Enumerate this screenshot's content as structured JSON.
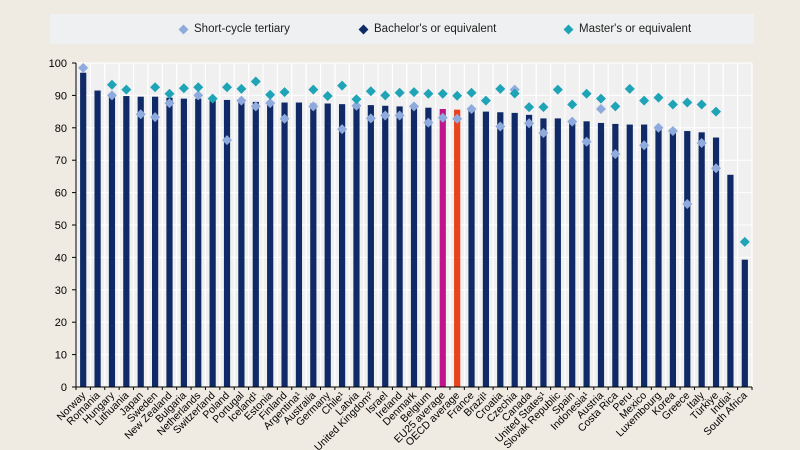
{
  "chart_data": {
    "type": "bar",
    "title": "",
    "xlabel": "",
    "ylabel": "",
    "ylim": [
      0,
      100
    ],
    "yticks": [
      0,
      10,
      20,
      30,
      40,
      50,
      60,
      70,
      80,
      90,
      100
    ],
    "grid": true,
    "legend_position": "top",
    "colors": {
      "bar": "#0f2a66",
      "eu25_bar": "#c0158a",
      "oecd_bar": "#e8431c",
      "short_cycle": "#8faadc",
      "master": "#1fa3b7",
      "plot_bg": "#f0f0f0",
      "page_bg": "#efebe2"
    },
    "legend": [
      {
        "name": "Short-cycle tertiary",
        "color": "#8faadc"
      },
      {
        "name": "Bachelor's or equivalent",
        "color": "#0f2a66"
      },
      {
        "name": "Master's or equivalent",
        "color": "#1fa3b7"
      }
    ],
    "categories": [
      "Norway",
      "Romania",
      "Hungary",
      "Lithuania",
      "Japan",
      "Sweden",
      "New Zealand",
      "Bulgaria",
      "Netherlands",
      "Switzerland",
      "Poland",
      "Portugal",
      "Iceland¹",
      "Estonia",
      "Finland",
      "Argentina¹",
      "Australia",
      "Germany",
      "Chile¹",
      "Latvia",
      "United Kingdom²",
      "Israel",
      "Ireland",
      "Denmark",
      "Belgium",
      "EU25 average",
      "OECD average",
      "France",
      "Brazil¹",
      "Croatia",
      "Czechia",
      "Canada",
      "United States¹",
      "Slovak Republic",
      "Spain",
      "Indonesia¹",
      "Austria",
      "Costa Rica",
      "Peru",
      "Mexico",
      "Luxembourg",
      "Korea",
      "Greece",
      "Italy",
      "Türkiye",
      "India¹",
      "South Africa"
    ],
    "highlight": {
      "EU25 average": "eu25_bar",
      "OECD average": "oecd_bar"
    },
    "series": [
      {
        "name": "Bachelor's or equivalent",
        "kind": "bar",
        "values": [
          97,
          91.5,
          90,
          89.8,
          89.6,
          89.6,
          89.3,
          89,
          89,
          88.8,
          88.6,
          88.6,
          88,
          87.8,
          87.8,
          87.8,
          87.5,
          87.5,
          87.3,
          87,
          87,
          86.8,
          86.6,
          86.2,
          86.2,
          85.8,
          85.6,
          85.5,
          85,
          84.8,
          84.6,
          84,
          82.9,
          82.9,
          82.4,
          82,
          81.5,
          81.2,
          81,
          81,
          80.6,
          79.7,
          79,
          78.6,
          77,
          65.5,
          39.3
        ]
      },
      {
        "name": "Short-cycle tertiary",
        "kind": "marker",
        "values": [
          98.5,
          null,
          90,
          null,
          84.2,
          83.3,
          87.6,
          null,
          90,
          null,
          76.2,
          88.4,
          86.6,
          87.6,
          82.8,
          null,
          86.6,
          89.8,
          79.6,
          86.8,
          82.9,
          83.8,
          83.8,
          86.6,
          81.6,
          83.1,
          82.8,
          85.8,
          null,
          80.4,
          91.8,
          81.4,
          78.4,
          null,
          81.9,
          75.7,
          85.8,
          71.9,
          null,
          74.6,
          80,
          79,
          56.5,
          75.3,
          67.5,
          null,
          null
        ]
      },
      {
        "name": "Master's or equivalent",
        "kind": "marker",
        "values": [
          null,
          null,
          93.3,
          91.8,
          null,
          92.5,
          90.5,
          92.2,
          92.5,
          89,
          92.5,
          92,
          94.3,
          90.2,
          91,
          null,
          91.8,
          89.8,
          93,
          88.8,
          91.3,
          90,
          90.8,
          91,
          90.5,
          90.5,
          89.9,
          90.8,
          88.4,
          92,
          90.6,
          86.4,
          86.4,
          91.8,
          87.2,
          90.5,
          89,
          86.6,
          92,
          88.4,
          89.3,
          87.2,
          87.8,
          87.2,
          85,
          null,
          44.8
        ]
      }
    ]
  }
}
